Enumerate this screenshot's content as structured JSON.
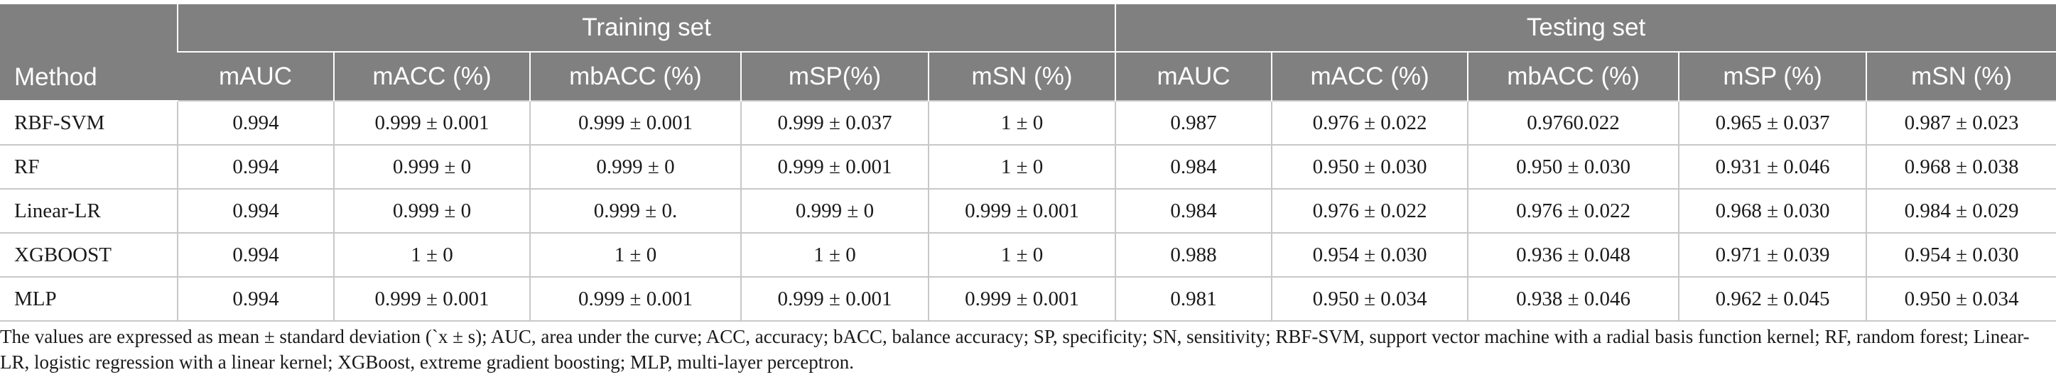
{
  "table": {
    "groups": {
      "training": "Training set",
      "testing": "Testing set"
    },
    "method_header": "Method",
    "metric_headers": [
      "mAUC",
      "mACC (%)",
      "mbACC (%)",
      "mSP(%)",
      "mSN (%)",
      "mAUC",
      "mACC (%)",
      "mbACC (%)",
      "mSP (%)",
      "mSN (%)"
    ],
    "rows": [
      {
        "method": "RBF-SVM",
        "cells": [
          "0.994",
          "0.999 ± 0.001",
          "0.999 ± 0.001",
          "0.999 ± 0.037",
          "1 ± 0",
          "0.987",
          "0.976 ± 0.022",
          "0.9760.022",
          "0.965 ± 0.037",
          "0.987 ± 0.023"
        ]
      },
      {
        "method": "RF",
        "cells": [
          "0.994",
          "0.999 ± 0",
          "0.999 ± 0",
          "0.999 ± 0.001",
          "1 ± 0",
          "0.984",
          "0.950 ± 0.030",
          "0.950 ± 0.030",
          "0.931 ± 0.046",
          "0.968 ± 0.038"
        ]
      },
      {
        "method": "Linear-LR",
        "cells": [
          "0.994",
          "0.999 ± 0",
          "0.999 ± 0.",
          "0.999 ± 0",
          "0.999 ± 0.001",
          "0.984",
          "0.976 ± 0.022",
          "0.976 ± 0.022",
          "0.968 ± 0.030",
          "0.984 ± 0.029"
        ]
      },
      {
        "method": "XGBOOST",
        "cells": [
          "0.994",
          "1 ± 0",
          "1 ± 0",
          "1 ± 0",
          "1 ± 0",
          "0.988",
          "0.954 ± 0.030",
          "0.936 ± 0.048",
          "0.971 ± 0.039",
          "0.954 ± 0.030"
        ]
      },
      {
        "method": "MLP",
        "cells": [
          "0.994",
          "0.999 ± 0.001",
          "0.999 ± 0.001",
          "0.999 ± 0.001",
          "0.999 ± 0.001",
          "0.981",
          "0.950 ± 0.034",
          "0.938 ± 0.046",
          "0.962 ± 0.045",
          "0.950 ± 0.034"
        ]
      }
    ]
  },
  "footnote": "The values are expressed as mean ± standard deviation (`x ± s); AUC, area under the curve; ACC, accuracy; bACC, balance accuracy; SP, specificity; SN, sensitivity; RBF-SVM, support vector machine with a radial basis function kernel; RF, random forest; Linear-LR, logistic regression with a linear kernel; XGBoost, extreme gradient boosting; MLP, multi-layer perceptron."
}
